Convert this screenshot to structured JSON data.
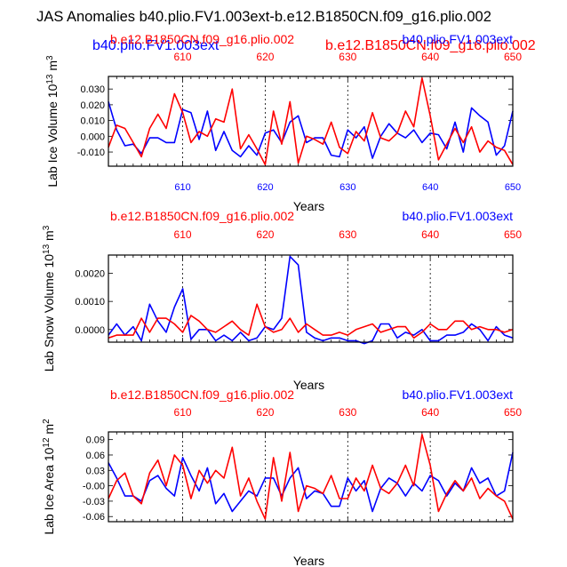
{
  "title": "JAS Anomalies b40.plio.FV1.003ext-b.e12.B1850CN.f09_g16.plio.002",
  "overlay_labels": {
    "blue_text": "b40.plio.FV1.003ext",
    "red_text": "b.e12.B1850CN.f09_g16.plio.002"
  },
  "colors": {
    "series_a": "#0000ff",
    "series_b": "#ff0000",
    "axis": "#000000",
    "grid": "#000000"
  },
  "chart_data": [
    {
      "type": "line",
      "left_label": "b.e12.B1850CN.f09_g16.plio.002",
      "right_label": "b40.plio.FV1.003ext",
      "ylabel": "Lab Ice Volume 10^13 m^3",
      "ylabel_main": "Lab Ice Volume 10",
      "ylabel_exp": "13",
      "ylabel_unit": "m",
      "ylabel_unit_exp": "3",
      "xlabel": "Years",
      "xlim": [
        601,
        650
      ],
      "ylim": [
        -0.019,
        0.038
      ],
      "yticks": [
        -0.01,
        0.0,
        0.01,
        0.02,
        0.03
      ],
      "ytick_labels": [
        "-0.010",
        "0.000",
        "0.010",
        "0.020",
        "0.030"
      ],
      "xticks": [
        610,
        620,
        630,
        640,
        650
      ],
      "xtick_labels": [
        "610",
        "620",
        "630",
        "640",
        "650"
      ],
      "vlines": [
        610,
        620,
        630,
        640
      ],
      "x": [
        601,
        602,
        603,
        604,
        605,
        606,
        607,
        608,
        609,
        610,
        611,
        612,
        613,
        614,
        615,
        616,
        617,
        618,
        619,
        620,
        621,
        622,
        623,
        624,
        625,
        626,
        627,
        628,
        629,
        630,
        631,
        632,
        633,
        634,
        635,
        636,
        637,
        638,
        639,
        640,
        641,
        642,
        643,
        644,
        645,
        646,
        647,
        648,
        649,
        650
      ],
      "series": [
        {
          "name": "b40.plio.FV1.003ext",
          "color": "#0000ff",
          "values": [
            0.022,
            0.004,
            -0.006,
            -0.005,
            -0.011,
            -0.001,
            -0.001,
            -0.004,
            -0.004,
            0.017,
            0.015,
            -0.002,
            0.016,
            -0.009,
            0.003,
            -0.009,
            -0.013,
            -0.006,
            -0.012,
            0.002,
            0.004,
            -0.004,
            0.009,
            0.013,
            -0.004,
            -0.001,
            -0.001,
            -0.012,
            -0.013,
            0.004,
            -0.001,
            0.006,
            -0.014,
            0.0,
            0.008,
            0.002,
            -0.001,
            0.004,
            -0.004,
            0.002,
            0.001,
            -0.008,
            0.009,
            -0.01,
            0.018,
            0.013,
            0.009,
            -0.012,
            -0.006,
            0.016
          ]
        },
        {
          "name": "b.e12.B1850CN.f09_g16.plio.002",
          "color": "#ff0000",
          "values": [
            -0.007,
            0.007,
            0.005,
            -0.004,
            -0.013,
            0.005,
            0.014,
            0.005,
            0.027,
            0.015,
            -0.004,
            0.003,
            0.0,
            0.011,
            0.009,
            0.03,
            -0.008,
            0.001,
            -0.008,
            -0.018,
            0.016,
            -0.005,
            0.022,
            -0.017,
            0.0,
            -0.002,
            -0.005,
            0.009,
            -0.007,
            -0.011,
            0.003,
            -0.003,
            0.015,
            -0.001,
            -0.003,
            0.002,
            0.016,
            0.006,
            0.037,
            0.013,
            -0.015,
            -0.005,
            0.005,
            -0.004,
            0.006,
            -0.01,
            -0.003,
            -0.007,
            -0.009,
            -0.018
          ]
        }
      ]
    },
    {
      "type": "line",
      "left_label": "b.e12.B1850CN.f09_g16.plio.002",
      "right_label": "b40.plio.FV1.003ext",
      "ylabel": "Lab Snow Volume 10^13 m^3",
      "ylabel_main": "Lab Snow Volume 10",
      "ylabel_exp": "13",
      "ylabel_unit": "m",
      "ylabel_unit_exp": "3",
      "xlabel": "Years",
      "xlim": [
        601,
        650
      ],
      "ylim": [
        -0.00045,
        0.00265
      ],
      "yticks": [
        0.0,
        0.001,
        0.002
      ],
      "ytick_labels": [
        "0.0000",
        "0.0010",
        "0.0020"
      ],
      "xticks": [
        610,
        620,
        630,
        640,
        650
      ],
      "xtick_labels": [
        "610",
        "620",
        "630",
        "640",
        "650"
      ],
      "vlines": [
        610,
        620,
        630,
        640
      ],
      "x": [
        601,
        602,
        603,
        604,
        605,
        606,
        607,
        608,
        609,
        610,
        611,
        612,
        613,
        614,
        615,
        616,
        617,
        618,
        619,
        620,
        621,
        622,
        623,
        624,
        625,
        626,
        627,
        628,
        629,
        630,
        631,
        632,
        633,
        634,
        635,
        636,
        637,
        638,
        639,
        640,
        641,
        642,
        643,
        644,
        645,
        646,
        647,
        648,
        649,
        650
      ],
      "series": [
        {
          "name": "b40.plio.FV1.003ext",
          "color": "#0000ff",
          "values": [
            -0.0002,
            0.0002,
            -0.0002,
            0.0001,
            -0.0004,
            0.0009,
            0.0003,
            -0.0001,
            0.0008,
            0.00145,
            -0.00035,
            0.0,
            0.0,
            -0.0004,
            -0.0002,
            -0.0004,
            -0.0001,
            -0.0004,
            -0.0003,
            0.0001,
            0.0,
            0.0004,
            0.0026,
            0.0023,
            -0.0001,
            -0.0003,
            -0.0004,
            -0.0003,
            -0.0003,
            -0.0004,
            -0.0004,
            -0.0005,
            -0.0004,
            0.0002,
            0.0002,
            -0.0003,
            -0.0001,
            -0.0002,
            0.0,
            -0.0004,
            -0.0004,
            -0.0002,
            -0.0002,
            -0.0001,
            0.0002,
            0.0,
            -0.0004,
            0.0001,
            -0.0002,
            -0.0003
          ]
        },
        {
          "name": "b.e12.B1850CN.f09_g16.plio.002",
          "color": "#ff0000",
          "values": [
            -0.0003,
            -0.0002,
            -0.0002,
            -0.0002,
            0.0004,
            -0.0001,
            0.0004,
            0.0004,
            0.0002,
            -0.0001,
            0.0005,
            0.0003,
            0.0,
            -0.0001,
            0.0001,
            0.0003,
            0.0,
            -0.0002,
            0.0009,
            0.0001,
            -0.0001,
            0.0,
            0.0004,
            -0.0001,
            0.0002,
            0.0,
            -0.0002,
            -0.0002,
            -0.0001,
            -0.0002,
            0.0,
            0.0001,
            0.0002,
            -0.0001,
            0.0,
            0.0001,
            0.0001,
            -0.0003,
            -0.0001,
            0.0002,
            0.0,
            0.0,
            0.0003,
            0.0003,
            0.0,
            0.0001,
            0.0,
            0.0,
            -0.0001,
            0.0
          ]
        }
      ]
    },
    {
      "type": "line",
      "left_label": "b.e12.B1850CN.f09_g16.plio.002",
      "right_label": "b40.plio.FV1.003ext",
      "ylabel": "Lab Ice Area 10^12 m^2",
      "ylabel_main": "Lab Ice Area 10",
      "ylabel_exp": "12",
      "ylabel_unit": "m",
      "ylabel_unit_exp": "2",
      "xlabel": "Years",
      "xlim": [
        601,
        650
      ],
      "ylim": [
        -0.07,
        0.105
      ],
      "yticks": [
        -0.06,
        -0.03,
        0.0,
        0.03,
        0.06,
        0.09
      ],
      "ytick_labels": [
        "-0.06",
        "-0.03",
        "-0.00",
        "0.03",
        "0.06",
        "0.09"
      ],
      "xticks": [
        610,
        620,
        630,
        640,
        650
      ],
      "xtick_labels": [
        "610",
        "620",
        "630",
        "640",
        "650"
      ],
      "vlines": [
        610,
        620,
        630,
        640
      ],
      "x": [
        601,
        602,
        603,
        604,
        605,
        606,
        607,
        608,
        609,
        610,
        611,
        612,
        613,
        614,
        615,
        616,
        617,
        618,
        619,
        620,
        621,
        622,
        623,
        624,
        625,
        626,
        627,
        628,
        629,
        630,
        631,
        632,
        633,
        634,
        635,
        636,
        637,
        638,
        639,
        640,
        641,
        642,
        643,
        644,
        645,
        646,
        647,
        648,
        649,
        650
      ],
      "series": [
        {
          "name": "b40.plio.FV1.003ext",
          "color": "#0000ff",
          "values": [
            0.045,
            0.015,
            -0.02,
            -0.02,
            -0.03,
            0.01,
            0.02,
            -0.005,
            -0.02,
            0.055,
            0.02,
            -0.01,
            0.035,
            -0.035,
            -0.015,
            -0.05,
            -0.03,
            -0.01,
            -0.02,
            0.015,
            0.015,
            -0.02,
            0.015,
            0.035,
            -0.025,
            -0.01,
            -0.015,
            -0.04,
            -0.04,
            0.015,
            -0.01,
            0.01,
            -0.05,
            -0.005,
            0.015,
            0.005,
            -0.02,
            0.005,
            -0.01,
            0.02,
            0.01,
            -0.02,
            0.005,
            -0.01,
            0.035,
            0.005,
            0.015,
            -0.02,
            -0.01,
            0.065
          ]
        },
        {
          "name": "b.e12.B1850CN.f09_g16.plio.002",
          "color": "#ff0000",
          "values": [
            -0.025,
            0.01,
            0.025,
            -0.02,
            -0.035,
            0.025,
            0.05,
            0.0,
            0.06,
            0.04,
            -0.025,
            0.03,
            0.005,
            0.03,
            0.015,
            0.075,
            -0.02,
            0.015,
            -0.03,
            -0.065,
            0.055,
            -0.03,
            0.065,
            -0.05,
            0.0,
            -0.005,
            -0.015,
            0.02,
            -0.025,
            -0.025,
            0.015,
            -0.01,
            0.04,
            -0.005,
            -0.015,
            0.005,
            0.04,
            0.0,
            0.1,
            0.04,
            -0.05,
            -0.015,
            0.01,
            -0.01,
            0.015,
            -0.025,
            -0.005,
            -0.02,
            -0.03,
            -0.065
          ]
        }
      ]
    }
  ]
}
